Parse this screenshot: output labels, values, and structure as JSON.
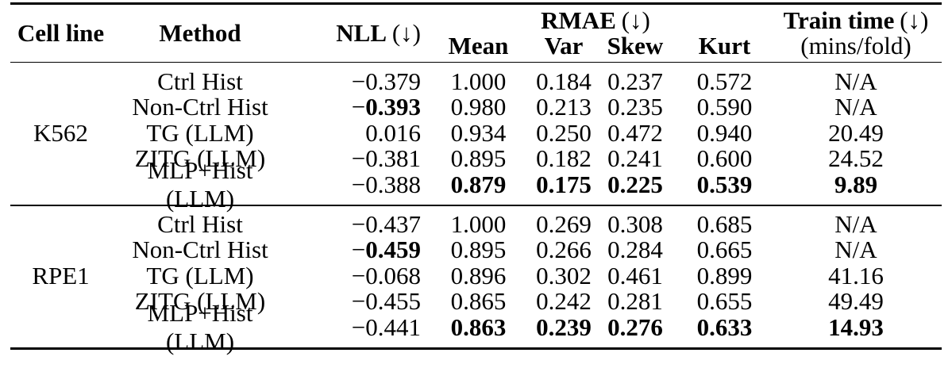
{
  "table": {
    "header": {
      "cell_line": "Cell line",
      "method": "Method",
      "nll": {
        "label": "NLL",
        "arrow": "(↓)"
      },
      "rmae": {
        "label": "RMAE",
        "arrow": "(↓)",
        "sub": [
          "Mean",
          "Var",
          "Skew",
          "Kurt"
        ]
      },
      "train_time": {
        "label": "Train time",
        "arrow": "(↓)",
        "unit": "(mins/fold)"
      }
    },
    "value_columns": [
      "nll",
      "mean",
      "var",
      "skew",
      "kurt",
      "train_time"
    ],
    "na_text": "N/A",
    "groups": [
      {
        "cell_line": "K562",
        "rows": [
          {
            "method": "Ctrl Hist",
            "values": [
              "−0.379",
              "1.000",
              "0.184",
              "0.237",
              "0.572",
              "N/A"
            ],
            "bold": [
              false,
              false,
              false,
              false,
              false,
              false
            ]
          },
          {
            "method": "Non-Ctrl Hist",
            "values": [
              "−0.393",
              "0.980",
              "0.213",
              "0.235",
              "0.590",
              "N/A"
            ],
            "bold": [
              true,
              false,
              false,
              false,
              false,
              false
            ]
          },
          {
            "method": "TG (LLM)",
            "values": [
              "0.016",
              "0.934",
              "0.250",
              "0.472",
              "0.940",
              "20.49"
            ],
            "bold": [
              false,
              false,
              false,
              false,
              false,
              false
            ]
          },
          {
            "method": "ZITG (LLM)",
            "values": [
              "−0.381",
              "0.895",
              "0.182",
              "0.241",
              "0.600",
              "24.52"
            ],
            "bold": [
              false,
              false,
              false,
              false,
              false,
              false
            ]
          },
          {
            "method": "MLP+Hist (LLM)",
            "values": [
              "−0.388",
              "0.879",
              "0.175",
              "0.225",
              "0.539",
              "9.89"
            ],
            "bold": [
              false,
              true,
              true,
              true,
              true,
              true
            ]
          }
        ]
      },
      {
        "cell_line": "RPE1",
        "rows": [
          {
            "method": "Ctrl Hist",
            "values": [
              "−0.437",
              "1.000",
              "0.269",
              "0.308",
              "0.685",
              "N/A"
            ],
            "bold": [
              false,
              false,
              false,
              false,
              false,
              false
            ]
          },
          {
            "method": "Non-Ctrl Hist",
            "values": [
              "−0.459",
              "0.895",
              "0.266",
              "0.284",
              "0.665",
              "N/A"
            ],
            "bold": [
              true,
              false,
              false,
              false,
              false,
              false
            ]
          },
          {
            "method": "TG (LLM)",
            "values": [
              "−0.068",
              "0.896",
              "0.302",
              "0.461",
              "0.899",
              "41.16"
            ],
            "bold": [
              false,
              false,
              false,
              false,
              false,
              false
            ]
          },
          {
            "method": "ZITG (LLM)",
            "values": [
              "−0.455",
              "0.865",
              "0.242",
              "0.281",
              "0.655",
              "49.49"
            ],
            "bold": [
              false,
              false,
              false,
              false,
              false,
              false
            ]
          },
          {
            "method": "MLP+Hist (LLM)",
            "values": [
              "−0.441",
              "0.863",
              "0.239",
              "0.276",
              "0.633",
              "14.93"
            ],
            "bold": [
              false,
              true,
              true,
              true,
              true,
              true
            ]
          }
        ]
      }
    ]
  }
}
